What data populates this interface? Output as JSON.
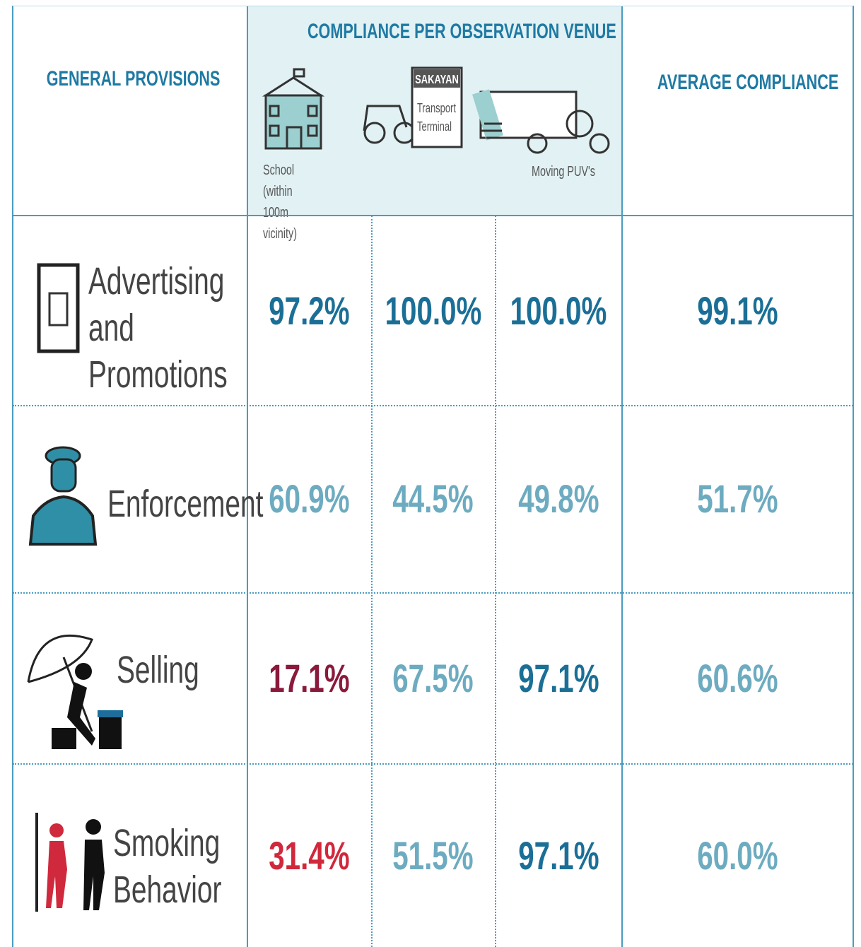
{
  "header": {
    "general_provisions": "GENERAL PROVISIONS",
    "venue_title": "COMPLIANCE PER OBSERVATION VENUE",
    "average": "AVERAGE COMPLIANCE",
    "venues": {
      "school": "School (within 100m vicinity)",
      "sign": "SAKAYAN",
      "terminal": "Transport Terminal",
      "puv": "Moving PUV's"
    }
  },
  "table": {
    "rows": [
      {
        "provision": "Advertising and Promotions",
        "cells": [
          {
            "text": "97.2%",
            "color": "#1b6f96"
          },
          {
            "text": "100.0%",
            "color": "#1b6f96"
          },
          {
            "text": "100.0%",
            "color": "#1b6f96"
          },
          {
            "text": "99.1%",
            "color": "#1b6f96"
          }
        ]
      },
      {
        "provision": "Enforcement",
        "cells": [
          {
            "text": "60.9%",
            "color": "#6dabc0"
          },
          {
            "text": "44.5%",
            "color": "#6dabc0"
          },
          {
            "text": "49.8%",
            "color": "#6dabc0"
          },
          {
            "text": "51.7%",
            "color": "#6dabc0"
          }
        ]
      },
      {
        "provision": "Selling",
        "cells": [
          {
            "text": "17.1%",
            "color": "#8a1a3c"
          },
          {
            "text": "67.5%",
            "color": "#6dabc0"
          },
          {
            "text": "97.1%",
            "color": "#1b6f96"
          },
          {
            "text": "60.6%",
            "color": "#6dabc0"
          }
        ]
      },
      {
        "provision": "Smoking Behavior",
        "cells": [
          {
            "text": "31.4%",
            "color": "#d0283c"
          },
          {
            "text": "51.5%",
            "color": "#6dabc0"
          },
          {
            "text": "97.1%",
            "color": "#1b6f96"
          },
          {
            "text": "60.0%",
            "color": "#6dabc0"
          }
        ]
      }
    ]
  }
}
